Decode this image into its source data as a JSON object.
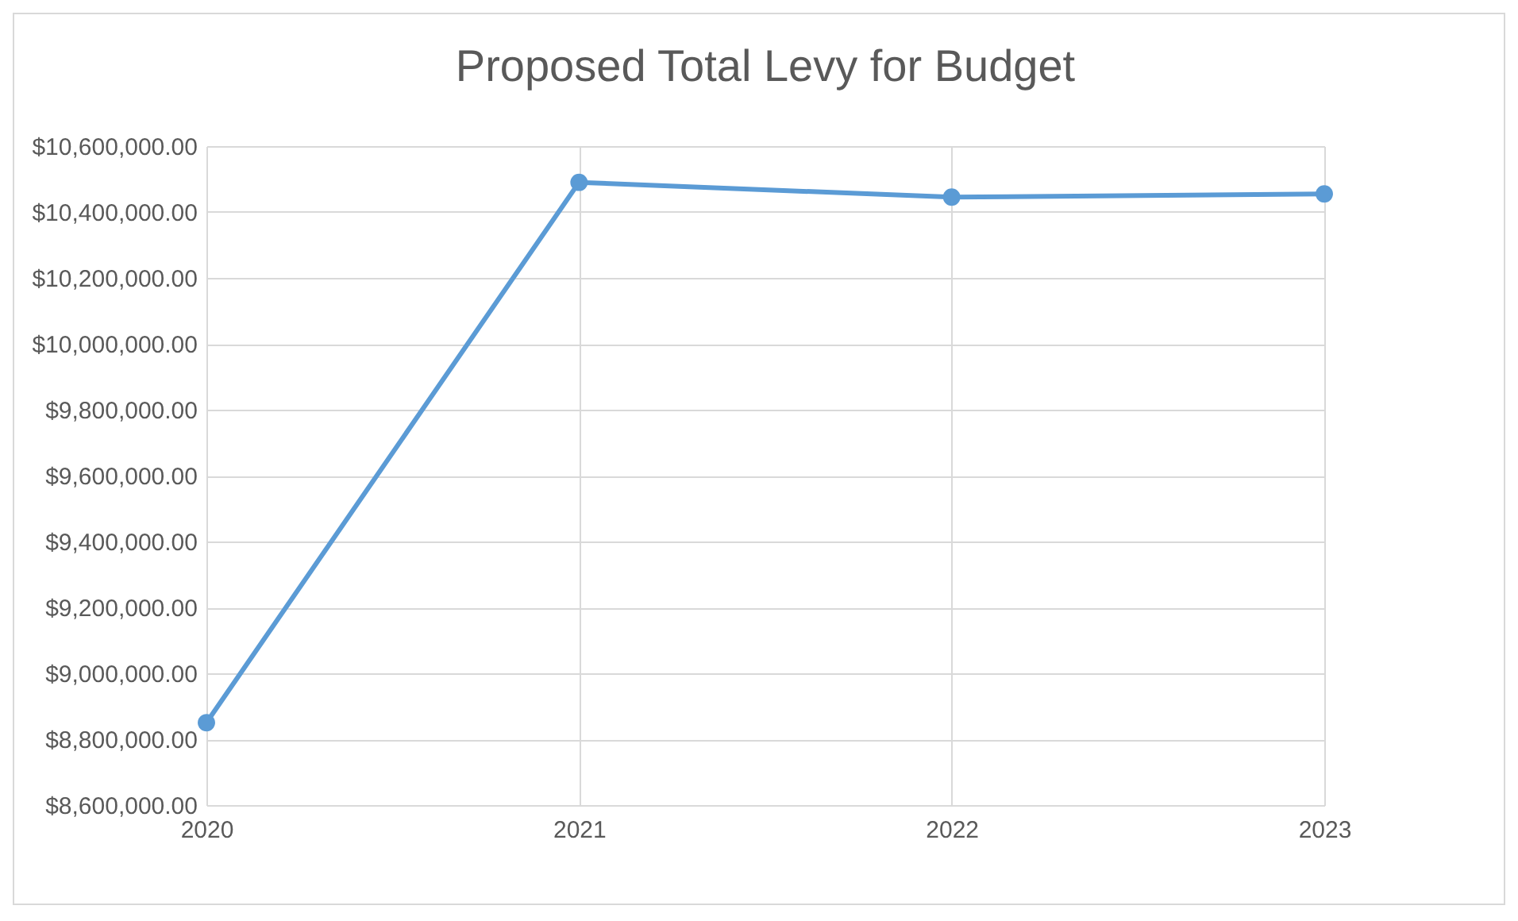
{
  "chart_data": {
    "type": "line",
    "title": "Proposed Total Levy for Budget",
    "categories": [
      "2020",
      "2021",
      "2022",
      "2023"
    ],
    "series": [
      {
        "color": "#5b9bd5",
        "values": [
          8850000,
          10490000,
          10445000,
          10455000
        ]
      }
    ],
    "ylim": [
      8600000,
      10600000
    ],
    "yticks": [
      {
        "value": 8600000,
        "label": "$8,600,000.00"
      },
      {
        "value": 8800000,
        "label": "$8,800,000.00"
      },
      {
        "value": 9000000,
        "label": "$9,000,000.00"
      },
      {
        "value": 9200000,
        "label": "$9,200,000.00"
      },
      {
        "value": 9400000,
        "label": "$9,400,000.00"
      },
      {
        "value": 9600000,
        "label": "$9,600,000.00"
      },
      {
        "value": 9800000,
        "label": "$9,800,000.00"
      },
      {
        "value": 10000000,
        "label": "$10,000,000.00"
      },
      {
        "value": 10200000,
        "label": "$10,200,000.00"
      },
      {
        "value": 10400000,
        "label": "$10,400,000.00"
      },
      {
        "value": 10600000,
        "label": "$10,600,000.00"
      }
    ],
    "grid": true,
    "marker": "circle",
    "line_style": "solid"
  }
}
